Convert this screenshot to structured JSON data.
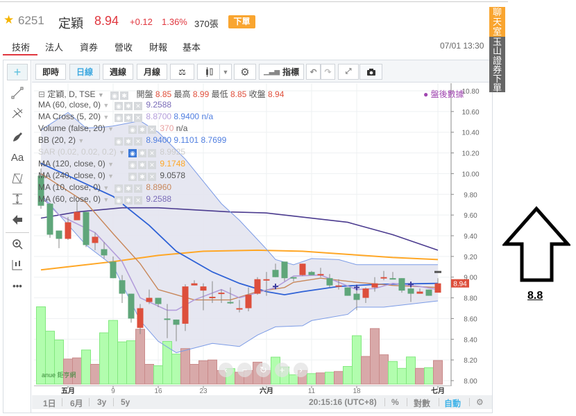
{
  "header": {
    "code": "6251",
    "name": "定穎",
    "price": "8.94",
    "change": "+0.12",
    "percent": "1.36%",
    "volume": "370張",
    "order_button": "下單"
  },
  "tabs": [
    {
      "label": "技術",
      "active": true
    },
    {
      "label": "法人"
    },
    {
      "label": "資券"
    },
    {
      "label": "營收"
    },
    {
      "label": "財報"
    },
    {
      "label": "基本"
    }
  ],
  "datetime": "07/01 13:30",
  "toolbar": {
    "realtime": "即時",
    "daily": "日線",
    "weekly": "週線",
    "monthly": "月線",
    "indicators": "指標",
    "active": "日線"
  },
  "left_tools": [
    "crosshair-icon",
    "trend-line-icon",
    "pitchfork-icon",
    "brush-icon",
    "text-icon",
    "pattern-icon",
    "measure-icon",
    "remove-arrow-icon",
    "zoom-in-icon",
    "ruler-icon",
    "more-icon"
  ],
  "left_text": {
    "text_tool": "Aa",
    "more": "•••"
  },
  "legend": {
    "main": {
      "label": "定穎, D, TSE",
      "open_label": "開盤",
      "open": "8.85",
      "high_label": "最高",
      "high": "8.99",
      "low_label": "最低",
      "low": "8.85",
      "close_label": "收盤",
      "close": "8.94"
    },
    "rows": [
      {
        "label": "MA (60, close, 0)",
        "values": [
          "9.2588"
        ],
        "colors": [
          "#7a6cb8"
        ]
      },
      {
        "label": "MA Cross (5, 20)",
        "values": [
          "8.8700",
          "8.9400",
          "n/a"
        ],
        "colors": [
          "#b39ddb",
          "#4f7ee0",
          "#4f7ee0"
        ]
      },
      {
        "label": "Volume (false, 20)",
        "values": [
          "370",
          "n/a"
        ],
        "colors": [
          "#e8a0a0",
          "#555"
        ]
      },
      {
        "label": "BB (20, 2)",
        "values": [
          "8.9400",
          "9.1101",
          "8.7699"
        ],
        "colors": [
          "#4f7ee0",
          "#4f7ee0",
          "#4f7ee0"
        ]
      },
      {
        "label": "SAR (0.02, 0.02, 0.2)",
        "values": [
          "8.9925"
        ],
        "colors": [
          "#ccc"
        ],
        "hidden": true
      },
      {
        "label": "MA (120, close, 0)",
        "values": [
          "9.1748"
        ],
        "colors": [
          "#ffa726"
        ]
      },
      {
        "label": "MA (240, close, 0)",
        "values": [
          "9.0578"
        ],
        "colors": [
          "#555"
        ]
      },
      {
        "label": "MA (10, close, 0)",
        "values": [
          "8.8960"
        ],
        "colors": [
          "#c8875a"
        ]
      },
      {
        "label": "MA (60, close, 0)",
        "values": [
          "9.2588"
        ],
        "colors": [
          "#7a6cb8"
        ]
      }
    ],
    "after_hours": "盤後數據"
  },
  "bottom": {
    "ranges": [
      "1日",
      "6月",
      "3y",
      "5y"
    ],
    "time": "20:15:16 (UTC+8)",
    "percent": "%",
    "log": "對數",
    "auto": "自動"
  },
  "logo": "anue 鉅亨網",
  "side": {
    "chat": "聊天室",
    "broker": "玉山證券下單"
  },
  "annotation": {
    "value": "8.8",
    "arrow": "up-arrow-icon"
  },
  "colors": {
    "up": "#dd4f3c",
    "down": "#5fa67a",
    "vol_up": "#d8a9a9",
    "vol_down": "#b2fdae",
    "accent": "#f9a530",
    "ma60": "#4b3b8f",
    "ma120": "#ffa726",
    "bb_mid": "#2f62d6",
    "bb_band": "#7b9be6",
    "ma10": "#c8875a",
    "ma5": "#b39ddb",
    "sar": "#3f3fa0"
  },
  "chart_data": {
    "type": "candlestick",
    "ylim": [
      8.0,
      10.8
    ],
    "yticks": [
      "10.80",
      "10.60",
      "10.40",
      "10.20",
      "10.00",
      "9.80",
      "9.60",
      "9.40",
      "9.20",
      "9.00",
      "8.80",
      "8.60",
      "8.40",
      "8.20",
      "8.00"
    ],
    "last_price": "8.94",
    "after_hours_price": 9.05,
    "xticks": [
      {
        "date": "05-02",
        "label": "五月",
        "bold": true
      },
      {
        "date": "05-09",
        "label": "9"
      },
      {
        "date": "05-16",
        "label": "16"
      },
      {
        "date": "05-23",
        "label": "23"
      },
      {
        "date": "06-03",
        "label": "六月",
        "bold": true
      },
      {
        "date": "06-11",
        "label": "11"
      },
      {
        "date": "06-18",
        "label": "18"
      },
      {
        "date": "07-01",
        "label": "七月",
        "bold": true
      }
    ],
    "dates": [
      "04-29",
      "04-30",
      "05-01",
      "05-02",
      "05-03",
      "05-06",
      "05-07",
      "05-08",
      "05-09",
      "05-10",
      "05-13",
      "05-14",
      "05-15",
      "05-16",
      "05-17",
      "05-20",
      "05-21",
      "05-22",
      "05-23",
      "05-24",
      "05-27",
      "05-28",
      "05-29",
      "05-30",
      "05-31",
      "06-03",
      "06-04",
      "06-05",
      "06-06",
      "06-10",
      "06-11",
      "06-12",
      "06-13",
      "06-14",
      "06-17",
      "06-18",
      "06-19",
      "06-20",
      "06-21",
      "06-24",
      "06-25",
      "06-26",
      "06-27",
      "06-28",
      "07-01"
    ],
    "ohlc": [
      [
        9.98,
        10.05,
        9.66,
        9.69
      ],
      [
        9.71,
        9.72,
        9.38,
        9.41
      ],
      [
        9.45,
        9.45,
        9.28,
        9.37
      ],
      [
        9.37,
        9.58,
        9.36,
        9.53
      ],
      [
        9.55,
        9.74,
        9.55,
        9.63
      ],
      [
        9.63,
        9.63,
        9.29,
        9.31
      ],
      [
        9.33,
        9.43,
        9.26,
        9.39
      ],
      [
        9.27,
        9.34,
        9.18,
        9.21
      ],
      [
        9.15,
        9.2,
        8.99,
        8.99
      ],
      [
        8.97,
        9.02,
        8.75,
        8.84
      ],
      [
        8.84,
        8.84,
        8.56,
        8.6
      ],
      [
        8.51,
        8.74,
        8.45,
        8.7
      ],
      [
        8.76,
        8.88,
        8.74,
        8.8
      ],
      [
        8.8,
        8.8,
        8.71,
        8.74
      ],
      [
        8.6,
        8.74,
        8.41,
        8.59
      ],
      [
        8.59,
        8.59,
        8.38,
        8.54
      ],
      [
        8.55,
        8.93,
        8.48,
        8.91
      ],
      [
        8.92,
        8.97,
        8.92,
        8.94
      ],
      [
        8.87,
        8.94,
        8.68,
        8.91
      ],
      [
        8.8,
        8.96,
        8.75,
        8.81
      ],
      [
        8.84,
        8.88,
        8.75,
        8.85
      ],
      [
        8.76,
        8.9,
        8.74,
        8.75
      ],
      [
        8.69,
        8.78,
        8.66,
        8.7
      ],
      [
        8.7,
        8.9,
        8.67,
        8.83
      ],
      [
        8.84,
        9.0,
        8.83,
        8.98
      ],
      [
        8.97,
        9.05,
        8.82,
        8.98
      ],
      [
        9.07,
        9.13,
        9.0,
        9.0
      ],
      [
        9.15,
        9.15,
        8.96,
        8.99
      ],
      [
        9.0,
        9.0,
        8.96,
        8.99
      ],
      [
        9.02,
        9.13,
        9.01,
        9.13
      ],
      [
        9.05,
        9.06,
        9.02,
        9.02
      ],
      [
        9.02,
        9.09,
        9.0,
        9.03
      ],
      [
        8.99,
        9.03,
        8.9,
        8.92
      ],
      [
        8.91,
        8.98,
        8.88,
        8.92
      ],
      [
        8.9,
        8.9,
        8.82,
        8.82
      ],
      [
        8.84,
        8.92,
        8.68,
        8.78
      ],
      [
        8.8,
        8.9,
        8.75,
        8.89
      ],
      [
        8.9,
        9.0,
        8.86,
        8.94
      ],
      [
        8.99,
        9.06,
        8.97,
        9.0
      ],
      [
        8.99,
        9.05,
        8.98,
        8.98
      ],
      [
        8.99,
        8.99,
        8.85,
        8.87
      ],
      [
        8.89,
        8.94,
        8.76,
        8.84
      ],
      [
        8.84,
        8.89,
        8.84,
        8.86
      ],
      [
        8.88,
        8.88,
        8.82,
        8.82
      ],
      [
        8.85,
        8.99,
        8.85,
        8.94
      ]
    ],
    "volume": [
      1212,
      830,
      692,
      393,
      411,
      535,
      310,
      804,
      999,
      662,
      681,
      860,
      310,
      288,
      669,
      471,
      557,
      310,
      367,
      378,
      213,
      243,
      187,
      213,
      344,
      213,
      423,
      269,
      146,
      213,
      165,
      176,
      187,
      198,
      277,
      759,
      434,
      871,
      460,
      355,
      247,
      426,
      247,
      258,
      370
    ],
    "lines": [
      {
        "key": "ma60",
        "points": [
          [
            "04-29",
            9.57
          ],
          [
            "05-03",
            9.63
          ],
          [
            "05-10",
            9.67
          ],
          [
            "05-16",
            9.67
          ],
          [
            "05-28",
            9.63
          ],
          [
            "06-03",
            9.62
          ],
          [
            "06-17",
            9.53
          ],
          [
            "06-24",
            9.41
          ],
          [
            "07-01",
            9.26
          ]
        ]
      },
      {
        "key": "ma120",
        "points": [
          [
            "04-29",
            9.07
          ],
          [
            "05-09",
            9.15
          ],
          [
            "05-16",
            9.21
          ],
          [
            "05-23",
            9.25
          ],
          [
            "05-31",
            9.26
          ],
          [
            "06-10",
            9.25
          ],
          [
            "06-17",
            9.22
          ],
          [
            "06-24",
            9.19
          ],
          [
            "07-01",
            9.17
          ]
        ]
      },
      {
        "key": "bb_band",
        "points": [
          [
            "04-29",
            10.42
          ],
          [
            "05-02",
            10.59
          ],
          [
            "05-06",
            10.44
          ],
          [
            "05-08",
            10.45
          ],
          [
            "05-09",
            10.46
          ],
          [
            "05-14",
            10.51
          ],
          [
            "05-16",
            10.4
          ],
          [
            "05-21",
            10.14
          ],
          [
            "05-27",
            9.71
          ],
          [
            "05-29",
            9.55
          ],
          [
            "06-03",
            9.27
          ],
          [
            "06-04",
            9.17
          ],
          [
            "06-06",
            9.12
          ],
          [
            "06-11",
            9.18
          ],
          [
            "06-14",
            9.17
          ],
          [
            "06-18",
            9.12
          ],
          [
            "07-01",
            9.12
          ]
        ],
        "role": "upper"
      },
      {
        "key": "bb_band",
        "points": [
          [
            "04-29",
            9.8
          ],
          [
            "05-06",
            9.31
          ],
          [
            "05-09",
            9.11
          ],
          [
            "05-14",
            8.58
          ],
          [
            "05-16",
            8.38
          ],
          [
            "05-20",
            8.27
          ],
          [
            "05-24",
            8.36
          ],
          [
            "05-29",
            8.33
          ],
          [
            "05-31",
            8.44
          ],
          [
            "06-04",
            8.52
          ],
          [
            "06-10",
            8.53
          ],
          [
            "06-11",
            8.58
          ],
          [
            "06-17",
            8.64
          ],
          [
            "06-18",
            8.71
          ],
          [
            "06-21",
            8.71
          ],
          [
            "06-25",
            8.73
          ],
          [
            "07-01",
            8.77
          ]
        ],
        "role": "lower"
      },
      {
        "key": "bb_mid",
        "points": [
          [
            "04-29",
            10.1
          ],
          [
            "05-09",
            9.78
          ],
          [
            "05-15",
            9.5
          ],
          [
            "05-20",
            9.25
          ],
          [
            "05-24",
            9.05
          ],
          [
            "05-29",
            8.94
          ],
          [
            "06-03",
            8.86
          ],
          [
            "06-05",
            8.83
          ],
          [
            "06-10",
            8.86
          ],
          [
            "06-14",
            8.91
          ],
          [
            "06-20",
            8.93
          ],
          [
            "07-01",
            8.94
          ]
        ]
      },
      {
        "key": "ma10",
        "points": [
          [
            "04-29",
            10.0
          ],
          [
            "05-06",
            9.72
          ],
          [
            "05-09",
            9.42
          ],
          [
            "05-14",
            9.13
          ],
          [
            "05-16",
            8.88
          ],
          [
            "05-22",
            8.78
          ],
          [
            "05-28",
            8.78
          ],
          [
            "05-31",
            8.86
          ],
          [
            "06-05",
            8.9
          ],
          [
            "06-06",
            8.95
          ],
          [
            "06-12",
            8.99
          ],
          [
            "06-18",
            8.95
          ],
          [
            "06-24",
            8.92
          ],
          [
            "07-01",
            8.9
          ]
        ]
      },
      {
        "key": "ma5",
        "points": [
          [
            "04-29",
            9.78
          ],
          [
            "05-01",
            9.6
          ],
          [
            "05-07",
            9.43
          ],
          [
            "05-10",
            9.15
          ],
          [
            "05-14",
            8.8
          ],
          [
            "05-17",
            8.68
          ],
          [
            "05-20",
            8.68
          ],
          [
            "05-22",
            8.78
          ],
          [
            "05-27",
            8.88
          ],
          [
            "05-29",
            8.8
          ],
          [
            "06-04",
            8.9
          ],
          [
            "06-06",
            9.01
          ],
          [
            "06-12",
            9.02
          ],
          [
            "06-14",
            8.95
          ],
          [
            "06-18",
            8.88
          ],
          [
            "06-20",
            8.89
          ],
          [
            "06-24",
            8.94
          ],
          [
            "06-27",
            8.91
          ],
          [
            "07-01",
            8.88
          ]
        ]
      }
    ],
    "sar": [
      [
        "06-04",
        8.91
      ],
      [
        "06-18",
        8.9
      ],
      [
        "06-26",
        8.93
      ]
    ]
  }
}
